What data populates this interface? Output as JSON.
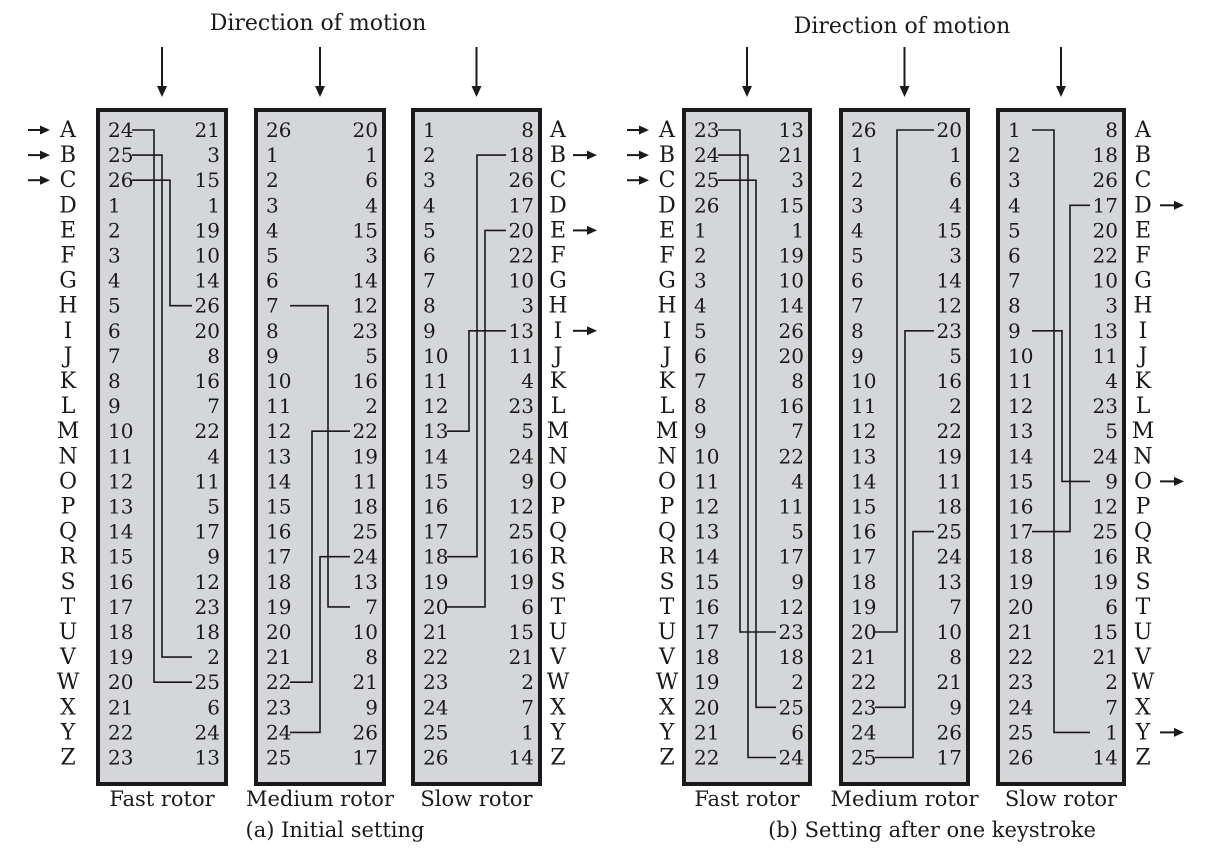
{
  "colors": {
    "rotor_fill": "#d4d6d9",
    "ink": "#1a1a1a",
    "background": "#ffffff"
  },
  "letters": [
    "A",
    "B",
    "C",
    "D",
    "E",
    "F",
    "G",
    "H",
    "I",
    "J",
    "K",
    "L",
    "M",
    "N",
    "O",
    "P",
    "Q",
    "R",
    "S",
    "T",
    "U",
    "V",
    "W",
    "X",
    "Y",
    "Z"
  ],
  "panels": [
    {
      "id": "a",
      "direction_label": "Direction of motion",
      "caption": "(a) Initial setting",
      "input_arrows": [
        0,
        1,
        2
      ],
      "output_arrows": [
        1,
        4,
        8
      ],
      "rotors": [
        {
          "name": "Fast rotor",
          "left": [
            24,
            25,
            26,
            1,
            2,
            3,
            4,
            5,
            6,
            7,
            8,
            9,
            10,
            11,
            12,
            13,
            14,
            15,
            16,
            17,
            18,
            19,
            20,
            21,
            22,
            23
          ],
          "right": [
            21,
            3,
            15,
            1,
            19,
            10,
            14,
            26,
            20,
            8,
            16,
            7,
            22,
            4,
            11,
            5,
            17,
            9,
            12,
            23,
            18,
            2,
            25,
            6,
            24,
            13
          ],
          "wires": [
            [
              0,
              22
            ],
            [
              1,
              21
            ],
            [
              2,
              7
            ]
          ]
        },
        {
          "name": "Medium rotor",
          "left": [
            26,
            1,
            2,
            3,
            4,
            5,
            6,
            7,
            8,
            9,
            10,
            11,
            12,
            13,
            14,
            15,
            16,
            17,
            18,
            19,
            20,
            21,
            22,
            23,
            24,
            25
          ],
          "right": [
            20,
            1,
            6,
            4,
            15,
            3,
            14,
            12,
            23,
            5,
            16,
            2,
            22,
            19,
            11,
            18,
            25,
            24,
            13,
            7,
            10,
            8,
            21,
            9,
            26,
            17
          ],
          "wires": [
            [
              22,
              12
            ],
            [
              24,
              17
            ],
            [
              7,
              19
            ]
          ]
        },
        {
          "name": "Slow rotor",
          "left": [
            1,
            2,
            3,
            4,
            5,
            6,
            7,
            8,
            9,
            10,
            11,
            12,
            13,
            14,
            15,
            16,
            17,
            18,
            19,
            20,
            21,
            22,
            23,
            24,
            25,
            26
          ],
          "right": [
            8,
            18,
            26,
            17,
            20,
            22,
            10,
            3,
            13,
            11,
            4,
            23,
            5,
            24,
            9,
            12,
            25,
            16,
            19,
            6,
            15,
            21,
            2,
            7,
            1,
            14
          ],
          "wires": [
            [
              12,
              8
            ],
            [
              17,
              1
            ],
            [
              19,
              4
            ]
          ]
        }
      ]
    },
    {
      "id": "b",
      "direction_label": "Direction of motion",
      "caption": "(b) Setting after one keystroke",
      "input_arrows": [
        0,
        1,
        2
      ],
      "output_arrows": [
        3,
        14,
        24
      ],
      "rotors": [
        {
          "name": "Fast rotor",
          "left": [
            23,
            24,
            25,
            26,
            1,
            2,
            3,
            4,
            5,
            6,
            7,
            8,
            9,
            10,
            11,
            12,
            13,
            14,
            15,
            16,
            17,
            18,
            19,
            20,
            21,
            22
          ],
          "right": [
            13,
            21,
            3,
            15,
            1,
            19,
            10,
            14,
            26,
            20,
            8,
            16,
            7,
            22,
            4,
            11,
            5,
            17,
            9,
            12,
            23,
            18,
            2,
            25,
            6,
            24
          ],
          "wires": [
            [
              0,
              20
            ],
            [
              1,
              25
            ],
            [
              2,
              23
            ]
          ]
        },
        {
          "name": "Medium rotor",
          "left": [
            26,
            1,
            2,
            3,
            4,
            5,
            6,
            7,
            8,
            9,
            10,
            11,
            12,
            13,
            14,
            15,
            16,
            17,
            18,
            19,
            20,
            21,
            22,
            23,
            24,
            25
          ],
          "right": [
            20,
            1,
            6,
            4,
            15,
            3,
            14,
            12,
            23,
            5,
            16,
            2,
            22,
            19,
            11,
            18,
            25,
            24,
            13,
            7,
            10,
            8,
            21,
            9,
            26,
            17
          ],
          "wires": [
            [
              20,
              0
            ],
            [
              23,
              8
            ],
            [
              25,
              16
            ]
          ]
        },
        {
          "name": "Slow rotor",
          "left": [
            1,
            2,
            3,
            4,
            5,
            6,
            7,
            8,
            9,
            10,
            11,
            12,
            13,
            14,
            15,
            16,
            17,
            18,
            19,
            20,
            21,
            22,
            23,
            24,
            25,
            26
          ],
          "right": [
            8,
            18,
            26,
            17,
            20,
            22,
            10,
            3,
            13,
            11,
            4,
            23,
            5,
            24,
            9,
            12,
            25,
            16,
            19,
            6,
            15,
            21,
            2,
            7,
            1,
            14
          ],
          "wires": [
            [
              0,
              24
            ],
            [
              8,
              14
            ],
            [
              16,
              3
            ]
          ]
        }
      ]
    }
  ]
}
